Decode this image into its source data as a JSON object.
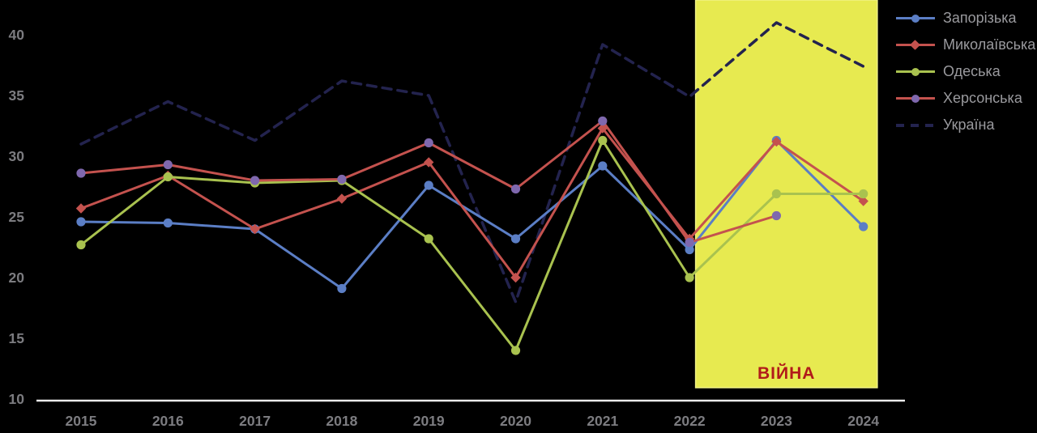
{
  "chart_data": {
    "type": "line",
    "title": "",
    "background": "#000000",
    "categories": [
      "2015",
      "2016",
      "2017",
      "2018",
      "2019",
      "2020",
      "2021",
      "2022",
      "2023",
      "2024"
    ],
    "series": [
      {
        "name": "Запорізька",
        "color": "#5B7EC5",
        "marker": "circle",
        "marker_color": "#5B7EC5",
        "dashed": false,
        "values": [
          24.6,
          24.5,
          24.0,
          19.1,
          27.6,
          23.2,
          29.2,
          22.3,
          31.3,
          24.2
        ]
      },
      {
        "name": "Миколаївська",
        "color": "#C4524E",
        "marker": "diamond",
        "marker_color": "#C4524E",
        "dashed": false,
        "values": [
          25.7,
          28.4,
          24.0,
          26.5,
          29.5,
          20.0,
          32.3,
          23.2,
          31.2,
          26.3
        ]
      },
      {
        "name": "Одеська",
        "color": "#A9C24F",
        "marker": "circle",
        "marker_color": "#A9C24F",
        "dashed": false,
        "values": [
          22.7,
          28.3,
          27.8,
          28.0,
          23.2,
          14.0,
          31.3,
          20.0,
          26.9,
          26.9
        ]
      },
      {
        "name": "Херсонська",
        "color": "#C4524E",
        "marker": "circle",
        "marker_color": "#7F68AE",
        "dashed": false,
        "values": [
          28.6,
          29.3,
          28.0,
          28.1,
          31.1,
          27.3,
          32.9,
          22.9,
          25.1,
          null
        ]
      },
      {
        "name": "Україна",
        "color": "#23234E",
        "marker": "none",
        "marker_color": "#23234E",
        "dashed": true,
        "values": [
          31.0,
          34.5,
          31.3,
          36.2,
          35.0,
          18.0,
          39.2,
          34.9,
          41.0,
          37.4
        ]
      }
    ],
    "yticks": [
      10,
      15,
      20,
      25,
      30,
      35,
      40
    ],
    "ylim": [
      10,
      42
    ],
    "grid": false,
    "legend_position": "top-right",
    "axis_color": "#EBEBEB",
    "tick_label_color": "#7c7c80",
    "war_zone": {
      "label": "ВІЙНА",
      "label_color": "#B11A1A",
      "fill": "#E7EA50",
      "border_color": "#F0F285",
      "from_year": 2022.07,
      "to_year": 2024.16
    }
  },
  "legend": {
    "items": [
      "Запорізька",
      "Миколаївська",
      "Одеська",
      "Херсонська",
      "Україна"
    ]
  }
}
